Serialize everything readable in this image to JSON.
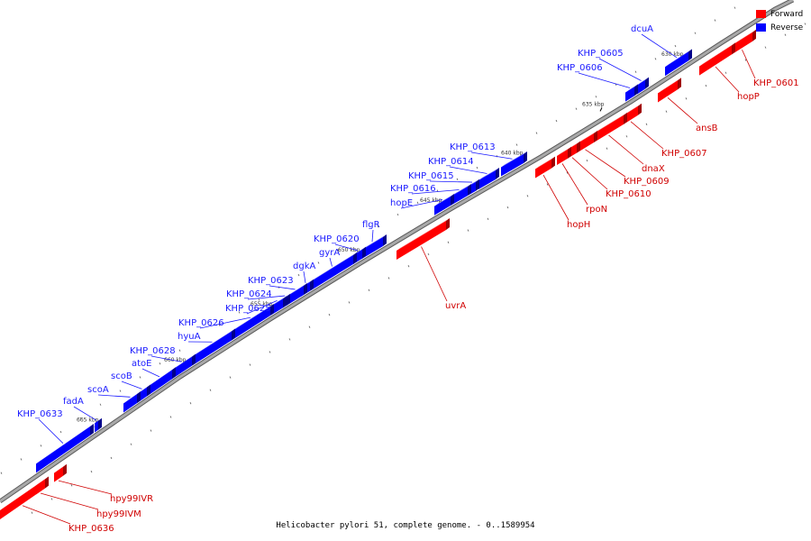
{
  "title": "Helicobacter pylori 51, complete genome. - 0..1589954",
  "legend": [
    {
      "label": "Forward",
      "color": "#ff0000"
    },
    {
      "label": "Reverse",
      "color": "#0000ff"
    }
  ],
  "colors": {
    "forward": "#ff0000",
    "reverse": "#0000ff",
    "backbone": "#a8a8a8"
  },
  "ticks": [
    {
      "label": "630 kbp"
    },
    {
      "label": "635 kbp"
    },
    {
      "label": "640 kbp"
    },
    {
      "label": "645 kbp"
    },
    {
      "label": "650 kbp"
    },
    {
      "label": "655 kbp"
    },
    {
      "label": "660 kbp"
    },
    {
      "label": "665 kbp"
    }
  ],
  "reverse_genes": [
    {
      "name": "dcuA"
    },
    {
      "name": "KHP_0605"
    },
    {
      "name": "KHP_0606"
    },
    {
      "name": "KHP_0613"
    },
    {
      "name": "KHP_0614"
    },
    {
      "name": "KHP_0615"
    },
    {
      "name": "KHP_0616"
    },
    {
      "name": "hopE"
    },
    {
      "name": "flgR"
    },
    {
      "name": "KHP_0620"
    },
    {
      "name": "gyrA"
    },
    {
      "name": "dgkA"
    },
    {
      "name": "KHP_0623"
    },
    {
      "name": "KHP_0624"
    },
    {
      "name": "KHP_0625"
    },
    {
      "name": "KHP_0626"
    },
    {
      "name": "hyuA"
    },
    {
      "name": "KHP_0628"
    },
    {
      "name": "atoE"
    },
    {
      "name": "scoB"
    },
    {
      "name": "scoA"
    },
    {
      "name": "fadA"
    },
    {
      "name": "KHP_0633"
    }
  ],
  "forward_genes": [
    {
      "name": "KHP_0601"
    },
    {
      "name": "hopP"
    },
    {
      "name": "ansB"
    },
    {
      "name": "KHP_0607"
    },
    {
      "name": "dnaX"
    },
    {
      "name": "KHP_0609"
    },
    {
      "name": "KHP_0610"
    },
    {
      "name": "rpoN"
    },
    {
      "name": "hopH"
    },
    {
      "name": "uvrA"
    },
    {
      "name": "hpy99IVR"
    },
    {
      "name": "hpy99IVM"
    },
    {
      "name": "KHP_0636"
    }
  ]
}
